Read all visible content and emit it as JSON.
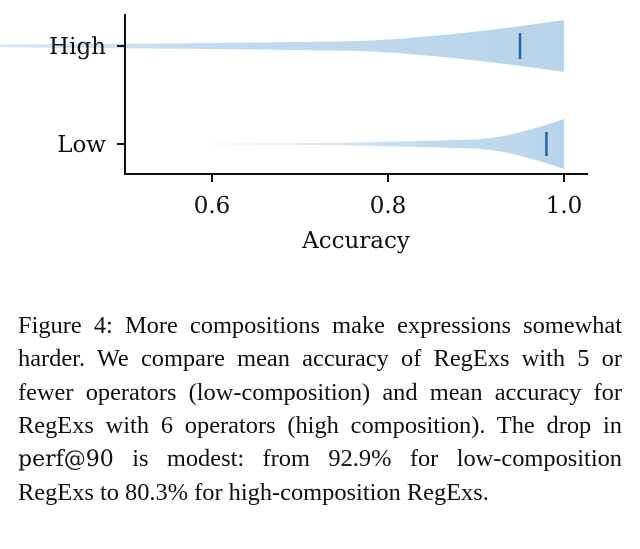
{
  "chart_data": {
    "type": "violin",
    "orientation": "horizontal",
    "categories": [
      "High",
      "Low"
    ],
    "xlabel": "Accuracy",
    "ylabel": "",
    "xlim": [
      0.5,
      1.0
    ],
    "xticks": [
      "0.6",
      "0.8",
      "1.0"
    ],
    "series": [
      {
        "category": "High",
        "min": 0.0,
        "max": 1.0,
        "mean": 0.95
      },
      {
        "category": "Low",
        "min": 0.6,
        "max": 1.0,
        "mean": 0.98
      }
    ],
    "colors": {
      "body": "#b8d4ea",
      "mean": "#1f67a8",
      "axis": "#111111"
    }
  },
  "caption": {
    "prefix": "Figure 4: More compositions make expressions somewhat harder. We compare mean accuracy of RegExs with 5 or fewer operators (low-composition) and mean accuracy for RegExs with 6 operators (high composition). The drop in ",
    "metric": "perf@90",
    "suffix": " is modest: from 92.9% for low-composition RegExs to 80.3% for high-composition RegExs."
  }
}
